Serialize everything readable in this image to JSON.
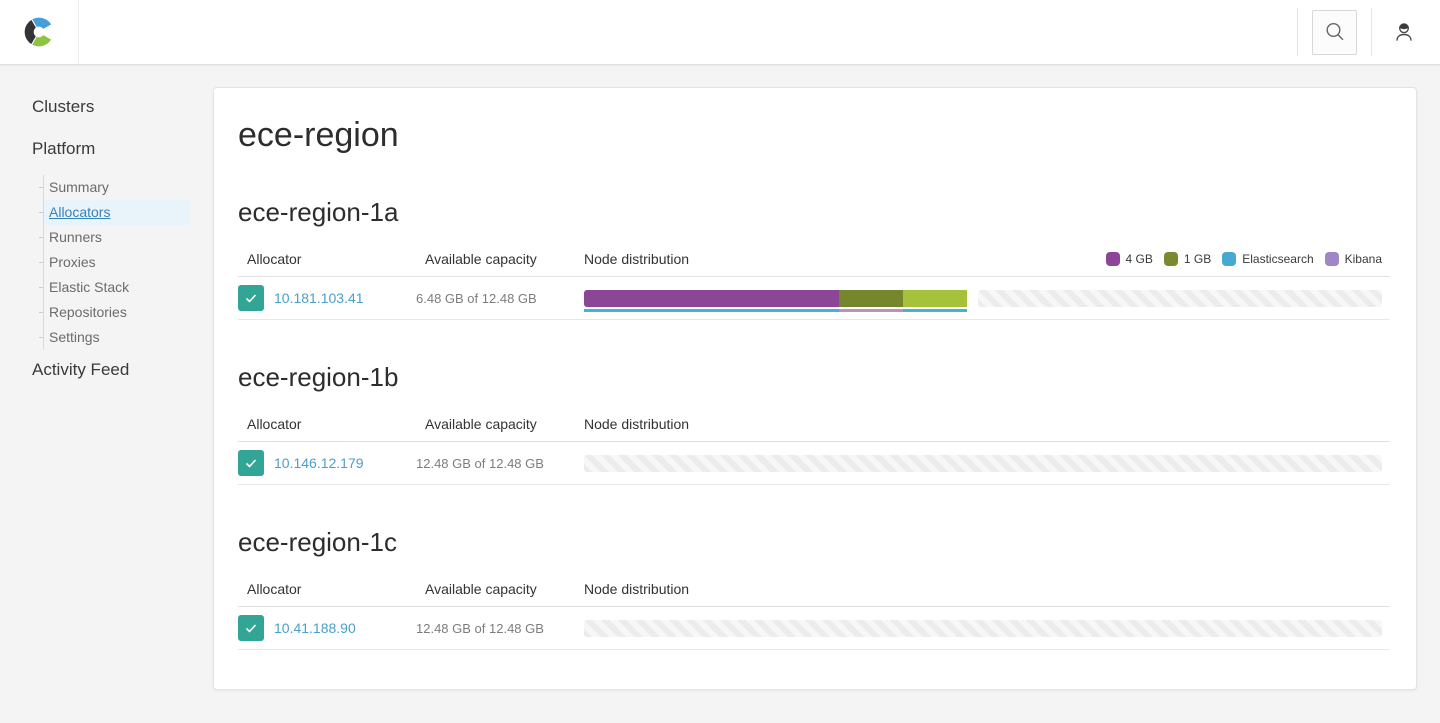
{
  "topbar": {
    "logo_icon": "elastic-cloud-logo",
    "search_icon": "magnifier",
    "user_icon": "person"
  },
  "sidebar": {
    "sections": [
      {
        "label": "Clusters",
        "type": "top",
        "children": []
      },
      {
        "label": "Platform",
        "type": "top",
        "children": [
          {
            "label": "Summary",
            "active": false
          },
          {
            "label": "Allocators",
            "active": true
          },
          {
            "label": "Runners",
            "active": false
          },
          {
            "label": "Proxies",
            "active": false
          },
          {
            "label": "Elastic Stack",
            "active": false
          },
          {
            "label": "Repositories",
            "active": false
          },
          {
            "label": "Settings",
            "active": false
          }
        ]
      },
      {
        "label": "Activity Feed",
        "type": "top",
        "children": []
      }
    ]
  },
  "page": {
    "title": "ece-region",
    "columns": [
      "Allocator",
      "Available capacity",
      "Node distribution"
    ],
    "legend": [
      {
        "label": "4 GB",
        "color": "#8d4697"
      },
      {
        "label": "1 GB",
        "color": "#7a8b2f"
      },
      {
        "label": "Elasticsearch",
        "color": "#47a9d3"
      },
      {
        "label": "Kibana",
        "color": "#9e87c4"
      }
    ],
    "status_ok_color": "#32a597",
    "zones": [
      {
        "name": "ece-region-1a",
        "show_legend": true,
        "rows": [
          {
            "status": "ok",
            "ip": "10.181.103.41",
            "capacity": "6.48 GB of 12.48 GB",
            "segments": [
              {
                "size_label": "4 GB",
                "type": "Elasticsearch",
                "width_pct": 32,
                "color": "#8d4697",
                "underline": "#45b2da"
              },
              {
                "size_label": "1 GB",
                "type": "Kibana",
                "width_pct": 8,
                "color": "#75862c",
                "underline": "#bb90c6"
              },
              {
                "size_label": "1 GB",
                "type": "Elasticsearch",
                "width_pct": 8,
                "color": "#a5c23a",
                "underline": "#45b2da"
              }
            ]
          }
        ]
      },
      {
        "name": "ece-region-1b",
        "show_legend": false,
        "rows": [
          {
            "status": "ok",
            "ip": "10.146.12.179",
            "capacity": "12.48 GB of 12.48 GB",
            "segments": []
          }
        ]
      },
      {
        "name": "ece-region-1c",
        "show_legend": false,
        "rows": [
          {
            "status": "ok",
            "ip": "10.41.188.90",
            "capacity": "12.48 GB of 12.48 GB",
            "segments": []
          }
        ]
      }
    ]
  }
}
